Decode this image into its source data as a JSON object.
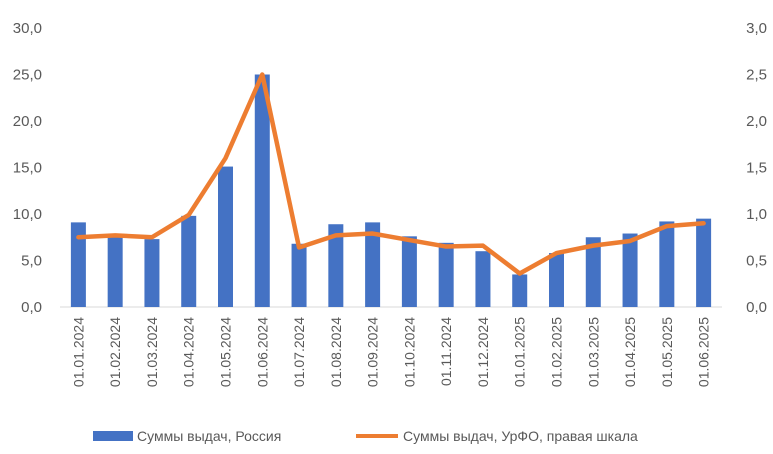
{
  "chart_data": {
    "type": "bar+line",
    "categories": [
      "01.01.2024",
      "01.02.2024",
      "01.03.2024",
      "01.04.2024",
      "01.05.2024",
      "01.06.2024",
      "01.07.2024",
      "01.08.2024",
      "01.09.2024",
      "01.10.2024",
      "01.11.2024",
      "01.12.2024",
      "01.01.2025",
      "01.02.2025",
      "01.03.2025",
      "01.04.2025",
      "01.05.2025",
      "01.06.2025"
    ],
    "series": [
      {
        "name": "Суммы выдач, Россия",
        "type": "bar",
        "axis": "left",
        "color": "#4472C4",
        "values": [
          9.1,
          7.9,
          7.3,
          9.8,
          15.1,
          25.0,
          6.8,
          8.9,
          9.1,
          7.6,
          6.9,
          6.0,
          3.5,
          5.8,
          7.5,
          7.9,
          9.2,
          9.5
        ]
      },
      {
        "name": "Суммы выдач, УрФО, правая шкала",
        "type": "line",
        "axis": "right",
        "color": "#ED7D31",
        "values": [
          0.75,
          0.77,
          0.75,
          0.99,
          1.6,
          2.5,
          0.64,
          0.77,
          0.79,
          0.72,
          0.65,
          0.66,
          0.36,
          0.58,
          0.66,
          0.71,
          0.87,
          0.9
        ]
      }
    ],
    "left_axis": {
      "min": 0,
      "max": 30,
      "ticks": [
        "0,0",
        "5,0",
        "10,0",
        "15,0",
        "20,0",
        "25,0",
        "30,0"
      ]
    },
    "right_axis": {
      "min": 0,
      "max": 3,
      "ticks": [
        "0,0",
        "0,5",
        "1,0",
        "1,5",
        "2,0",
        "2,5",
        "3,0"
      ]
    },
    "grid": false,
    "legend": "bottom",
    "title": "",
    "xlabel": "",
    "ylabel": ""
  }
}
